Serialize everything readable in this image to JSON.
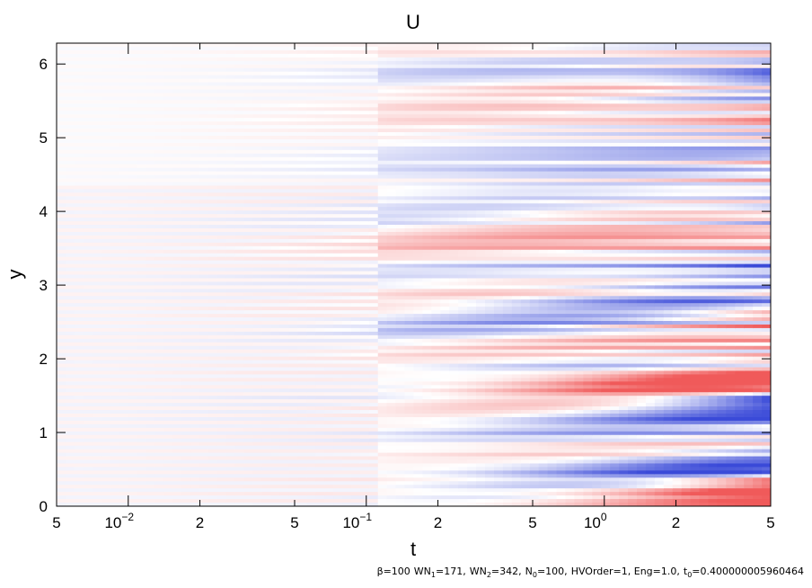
{
  "chart_data": {
    "type": "heatmap",
    "title": "U",
    "xlabel": "t",
    "ylabel": "y",
    "x_scale": "log",
    "xlim": [
      0.005,
      5
    ],
    "ylim": [
      0,
      6.283
    ],
    "x_ticks": [
      {
        "value": 0.005,
        "label": "5"
      },
      {
        "value": 0.01,
        "label": "10",
        "exp": "−2"
      },
      {
        "value": 0.02,
        "label": "2"
      },
      {
        "value": 0.05,
        "label": "5"
      },
      {
        "value": 0.1,
        "label": "10",
        "exp": "−1"
      },
      {
        "value": 0.2,
        "label": "2"
      },
      {
        "value": 0.5,
        "label": "5"
      },
      {
        "value": 1,
        "label": "10",
        "exp": "0"
      },
      {
        "value": 2,
        "label": "2"
      },
      {
        "value": 5,
        "label": "5"
      }
    ],
    "y_ticks": [
      {
        "value": 0,
        "label": "0"
      },
      {
        "value": 1,
        "label": "1"
      },
      {
        "value": 2,
        "label": "2"
      },
      {
        "value": 3,
        "label": "3"
      },
      {
        "value": 4,
        "label": "4"
      },
      {
        "value": 5,
        "label": "5"
      },
      {
        "value": 6,
        "label": "6"
      }
    ],
    "colormap": {
      "negative": "#3a4ad8",
      "zero": "#ffffff",
      "positive": "#f05a5a"
    },
    "grid": false,
    "legend": "none",
    "footnote": {
      "beta": "β=100",
      "wn1_prefix": "WN",
      "wn1_sub": "1",
      "wn1_val": "=171,",
      "wn2_prefix": "WN",
      "wn2_sub": "2",
      "wn2_val": "=342,",
      "n0_prefix": "N",
      "n0_sub": "0",
      "n0_val": "=100,",
      "rest": "HVOrder=1, Eng=1.0,",
      "t0_prefix": "t",
      "t0_sub": "0",
      "t0_val": "=0.400000005960464"
    }
  }
}
